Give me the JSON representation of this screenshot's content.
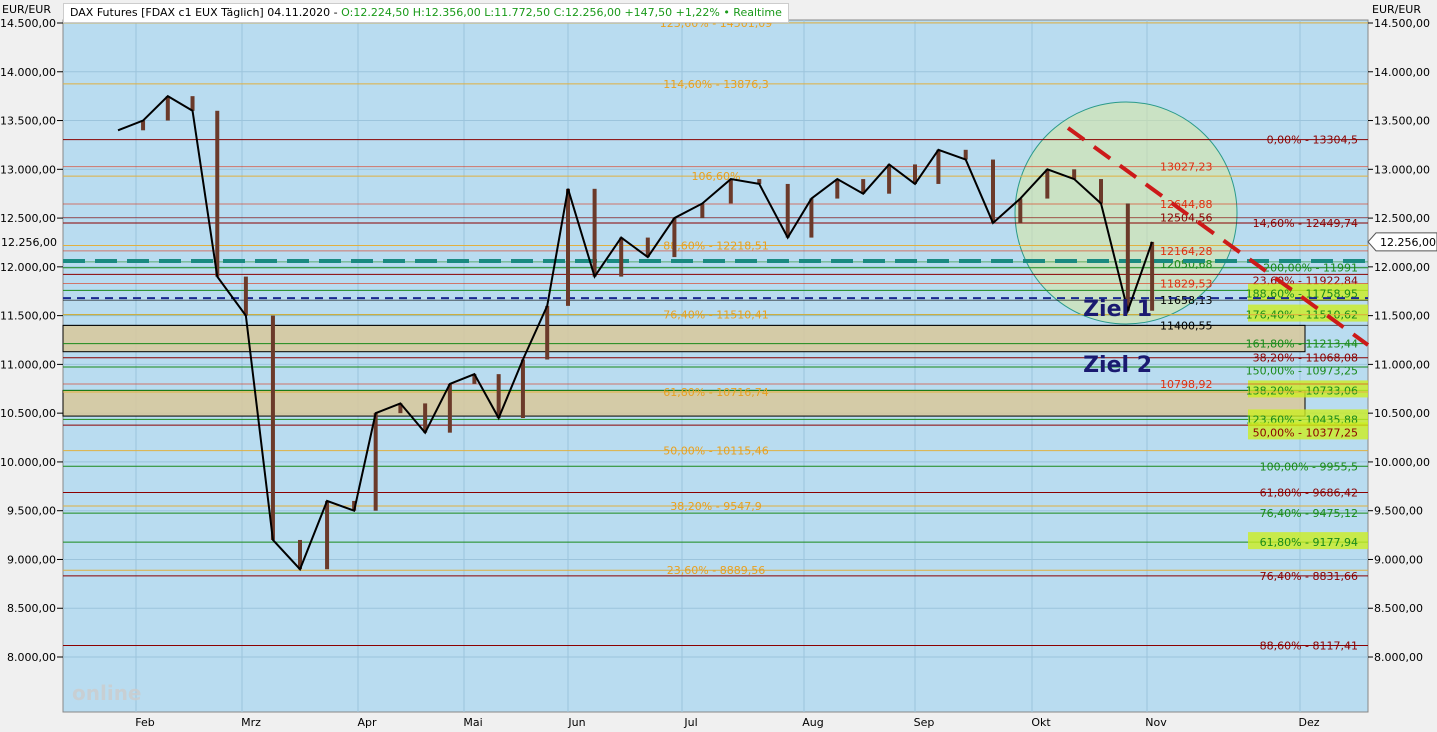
{
  "header": {
    "instrument": "DAX Futures [FDAX c1 EUX Täglich] 04.11.2020 -",
    "ohlc": "O:12.224,50 H:12.356,00 L:11.772,50 C:12.256,00 +147,50 +1,22%",
    "realtime": "• Realtime"
  },
  "axis_unit": "EUR/EUR",
  "price_tag": "12.256,00",
  "logo": "Tradesignal online",
  "colors": {
    "background": "#b9dcf0",
    "candle": "#6b3a2a",
    "close_line": "#000000",
    "ma_blue": "#1010cc",
    "ma_purple": "#7a1a70",
    "trend": "#cc1a1a",
    "circle": "#d8e8a0",
    "box": "#d8c89a",
    "highlight": "#ccee22"
  },
  "chart_data": {
    "type": "line",
    "title": "DAX Futures [FDAX c1 EUX Täglich]",
    "ylim": [
      7650,
      14650
    ],
    "y_ticks": [
      "14.500,00",
      "14.000,00",
      "13.500,00",
      "13.000,00",
      "12.500,00",
      "12.000,00",
      "11.500,00",
      "11.000,00",
      "10.500,00",
      "10.000,00",
      "9.500,00",
      "9.000,00",
      "8.500,00",
      "8.000,00"
    ],
    "y_tick_values": [
      14500,
      14000,
      13500,
      13000,
      12500,
      12000,
      11500,
      11000,
      10500,
      10000,
      9500,
      9000,
      8500,
      8000
    ],
    "x_ticks": [
      "Feb",
      "Mrz",
      "Apr",
      "Mai",
      "Jun",
      "Jul",
      "Aug",
      "Sep",
      "Okt",
      "Nov",
      "Dez"
    ],
    "close": {
      "dates": [
        "2020-01-27",
        "2020-02-03",
        "2020-02-10",
        "2020-02-17",
        "2020-02-24",
        "2020-03-02",
        "2020-03-09",
        "2020-03-16",
        "2020-03-23",
        "2020-03-30",
        "2020-04-06",
        "2020-04-13",
        "2020-04-20",
        "2020-04-27",
        "2020-05-04",
        "2020-05-11",
        "2020-05-18",
        "2020-05-25",
        "2020-06-01",
        "2020-06-08",
        "2020-06-15",
        "2020-06-22",
        "2020-06-29",
        "2020-07-06",
        "2020-07-13",
        "2020-07-20",
        "2020-07-27",
        "2020-08-03",
        "2020-08-10",
        "2020-08-17",
        "2020-08-24",
        "2020-08-31",
        "2020-09-07",
        "2020-09-14",
        "2020-09-21",
        "2020-09-28",
        "2020-10-05",
        "2020-10-12",
        "2020-10-19",
        "2020-10-26",
        "2020-11-02"
      ],
      "values": [
        13400,
        13500,
        13750,
        13600,
        11900,
        11500,
        9200,
        8900,
        9600,
        9500,
        10500,
        10600,
        10300,
        10800,
        10900,
        10450,
        11050,
        11600,
        12800,
        11900,
        12300,
        12100,
        12500,
        12650,
        12900,
        12850,
        12300,
        12700,
        12900,
        12750,
        13050,
        12850,
        13200,
        13100,
        12450,
        12700,
        13000,
        12900,
        12650,
        11550,
        12256
      ]
    },
    "levels_right": [
      {
        "label": "0,00% - 13304,5",
        "value": 13304.5,
        "color": "#8b0000"
      },
      {
        "label": "14,60% - 12449,74",
        "value": 12449.74,
        "color": "#8b0000"
      },
      {
        "label": "200,00% - 11991",
        "value": 11991,
        "color": "#1a8a1a"
      },
      {
        "label": "23,60% - 11922,84",
        "value": 11922.84,
        "color": "#8b0000"
      },
      {
        "label": "188,60% - 11758,95",
        "value": 11758.95,
        "color": "#1a8a1a",
        "hl": true
      },
      {
        "label": "176,40% - 11510,62",
        "value": 11510.62,
        "color": "#1a8a1a",
        "hl": true
      },
      {
        "label": "161,80% - 11213,44",
        "value": 11213.44,
        "color": "#1a8a1a"
      },
      {
        "label": "38,20% - 11068,08",
        "value": 11068.08,
        "color": "#8b0000"
      },
      {
        "label": "150,00% - 10973,25",
        "value": 10973.25,
        "color": "#1a8a1a"
      },
      {
        "label": "138,20% - 10733,06",
        "value": 10733.06,
        "color": "#1a8a1a",
        "hl": true
      },
      {
        "label": "123,60% - 10435,88",
        "value": 10435.88,
        "color": "#1a8a1a",
        "hl": true
      },
      {
        "label": "50,00% - 10377,25",
        "value": 10377.25,
        "color": "#8b0000",
        "hl": true
      },
      {
        "label": "100,00% - 9955,5",
        "value": 9955.5,
        "color": "#1a8a1a"
      },
      {
        "label": "61,80% - 9686,42",
        "value": 9686.42,
        "color": "#8b0000"
      },
      {
        "label": "76,40% - 9475,12",
        "value": 9475.12,
        "color": "#1a8a1a"
      },
      {
        "label": "61,80% - 9177,94",
        "value": 9177.94,
        "color": "#1a8a1a",
        "hl": true
      },
      {
        "label": "76,40% - 8831,66",
        "value": 8831.66,
        "color": "#8b0000"
      },
      {
        "label": "88,60% - 8117,41",
        "value": 8117.41,
        "color": "#8b0000"
      }
    ],
    "levels_center": [
      {
        "label": "123,60% - 14501,09",
        "value": 14501.09
      },
      {
        "label": "114,60% - 13876,3",
        "value": 13876.3
      },
      {
        "label": "106,60%",
        "value": 12930
      },
      {
        "label": "88,60% - 12218,51",
        "value": 12218.51
      },
      {
        "label": "76,40% - 11510,41",
        "value": 11510.41
      },
      {
        "label": "61,80% - 10716,74",
        "value": 10716.74
      },
      {
        "label": "50,00% - 10115,46",
        "value": 10115.46
      },
      {
        "label": "38,20% - 9547,9",
        "value": 9547.9
      },
      {
        "label": "23,60% - 8889,56",
        "value": 8889.56
      }
    ],
    "levels_mid": [
      {
        "label": "13027,23",
        "value": 13027.23,
        "color": "#e03010"
      },
      {
        "label": "12644,88",
        "value": 12644.88,
        "color": "#e03010"
      },
      {
        "label": "12504,56",
        "value": 12504.56,
        "color": "#8b0000"
      },
      {
        "label": "12164,28",
        "value": 12164.28,
        "color": "#e03010"
      },
      {
        "label": "12050,68",
        "value": 12050.68,
        "color": "#1a8a1a"
      },
      {
        "label": "11829,53",
        "value": 11829.53,
        "color": "#e03010"
      },
      {
        "label": "11658,13",
        "value": 11658.13,
        "color": "#000"
      },
      {
        "label": "11400,55",
        "value": 11400.55,
        "color": "#000"
      },
      {
        "label": "10798,92",
        "value": 10798.92,
        "color": "#e03010"
      }
    ],
    "zones": [
      {
        "label": "Ziel 1",
        "from": 11130,
        "to": 11400
      },
      {
        "label": "Ziel 2",
        "from": 10470,
        "to": 10733
      }
    ],
    "dashed": [
      {
        "value": 12060,
        "color": "#1a8a80"
      },
      {
        "value": 11680,
        "color": "#1a2a90"
      }
    ]
  }
}
